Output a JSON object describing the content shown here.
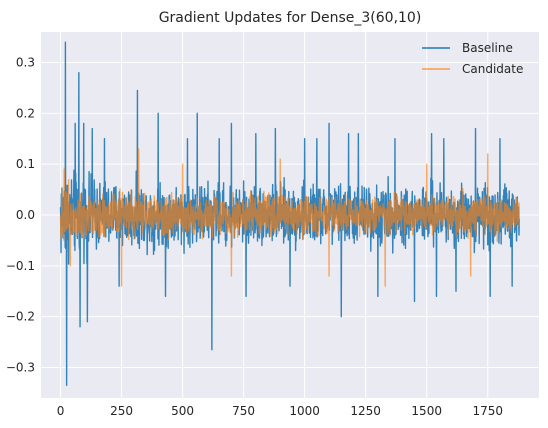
{
  "chart_data": {
    "type": "line",
    "title": "Gradient Updates for Dense_3(60,10)",
    "xlabel": "",
    "ylabel": "",
    "xlim": [
      -80,
      1960
    ],
    "ylim": [
      -0.36,
      0.36
    ],
    "x_ticks": [
      0,
      250,
      500,
      750,
      1000,
      1250,
      1500,
      1750
    ],
    "y_ticks": [
      -0.3,
      -0.2,
      -0.1,
      0.0,
      0.1,
      0.2,
      0.3
    ],
    "x_tick_labels": [
      "0",
      "250",
      "500",
      "750",
      "1000",
      "1250",
      "1500",
      "1750"
    ],
    "y_tick_labels": [
      "−0.3",
      "−0.2",
      "−0.1",
      "0.0",
      "0.1",
      "0.2",
      "0.3"
    ],
    "grid": true,
    "legend_position": "top-right",
    "n_points": 1880,
    "series": [
      {
        "name": "Baseline",
        "color": "#1f77b4",
        "spikes": [
          [
            20,
            0.34
          ],
          [
            25,
            -0.335
          ],
          [
            60,
            0.18
          ],
          [
            75,
            0.28
          ],
          [
            80,
            -0.22
          ],
          [
            95,
            0.18
          ],
          [
            110,
            -0.21
          ],
          [
            130,
            0.17
          ],
          [
            180,
            0.15
          ],
          [
            240,
            -0.14
          ],
          [
            315,
            0.245
          ],
          [
            400,
            0.2
          ],
          [
            430,
            -0.16
          ],
          [
            520,
            0.15
          ],
          [
            560,
            0.2
          ],
          [
            620,
            -0.265
          ],
          [
            650,
            0.15
          ],
          [
            700,
            0.18
          ],
          [
            760,
            -0.16
          ],
          [
            800,
            0.16
          ],
          [
            880,
            0.17
          ],
          [
            940,
            -0.14
          ],
          [
            1000,
            0.15
          ],
          [
            1050,
            0.15
          ],
          [
            1100,
            0.18
          ],
          [
            1150,
            -0.2
          ],
          [
            1180,
            0.16
          ],
          [
            1220,
            0.16
          ],
          [
            1300,
            -0.16
          ],
          [
            1370,
            0.15
          ],
          [
            1450,
            -0.17
          ],
          [
            1520,
            0.16
          ],
          [
            1540,
            -0.16
          ],
          [
            1570,
            0.15
          ],
          [
            1620,
            -0.15
          ],
          [
            1700,
            0.17
          ],
          [
            1760,
            -0.16
          ],
          [
            1800,
            0.15
          ],
          [
            1850,
            -0.14
          ]
        ],
        "noise_amplitude": 0.085
      },
      {
        "name": "Candidate",
        "color": "#ff7f0e",
        "spikes": [
          [
            15,
            0.09
          ],
          [
            40,
            -0.1
          ],
          [
            250,
            -0.14
          ],
          [
            320,
            0.13
          ],
          [
            500,
            0.1
          ],
          [
            700,
            -0.12
          ],
          [
            900,
            0.11
          ],
          [
            1100,
            -0.12
          ],
          [
            1330,
            -0.14
          ],
          [
            1500,
            0.1
          ],
          [
            1680,
            -0.12
          ],
          [
            1750,
            0.12
          ]
        ],
        "noise_amplitude": 0.055
      }
    ]
  }
}
